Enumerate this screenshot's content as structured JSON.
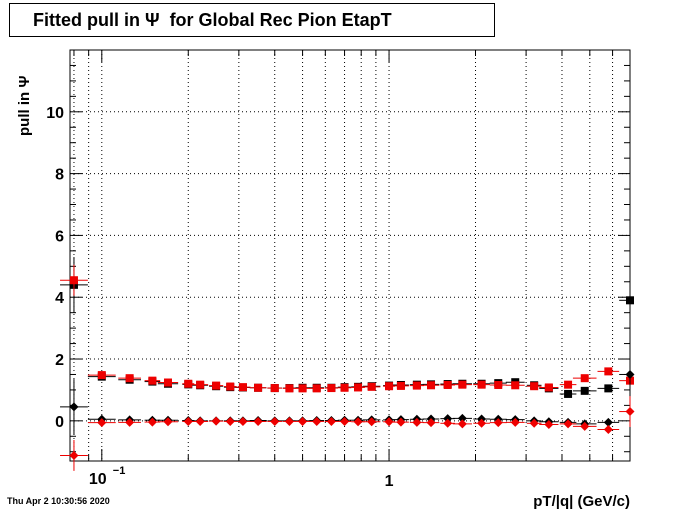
{
  "title": {
    "prefix": "Fitted pull in ",
    "symbol": "Ψ",
    "suffix": "  for Global Rec Pion EtapT"
  },
  "timestamp": "Thu Apr  2 10:30:56 2020",
  "chart_data": {
    "type": "scatter",
    "xlabel": "pT/|q| (GeV/c)",
    "ylabel_prefix": "pull in ",
    "ylabel_symbol": "Ψ",
    "xscale": "log",
    "xlim": [
      0.0775,
      6.9
    ],
    "ylim": [
      -1.3,
      12.0
    ],
    "yticks": [
      0,
      2,
      4,
      6,
      8,
      10
    ],
    "xtick_labels": [
      {
        "value": 0.1,
        "label": "10^-1"
      },
      {
        "value": 1,
        "label": "1"
      }
    ],
    "grid": true,
    "series": [
      {
        "color": "#000000",
        "marker": "square",
        "points": [
          [
            0.08,
            4.4
          ],
          [
            0.1,
            1.43
          ],
          [
            0.125,
            1.33
          ],
          [
            0.15,
            1.27
          ],
          [
            0.17,
            1.2
          ],
          [
            0.2,
            1.18
          ],
          [
            0.22,
            1.15
          ],
          [
            0.25,
            1.12
          ],
          [
            0.28,
            1.09
          ],
          [
            0.31,
            1.08
          ],
          [
            0.35,
            1.07
          ],
          [
            0.4,
            1.06
          ],
          [
            0.45,
            1.06
          ],
          [
            0.5,
            1.07
          ],
          [
            0.56,
            1.07
          ],
          [
            0.63,
            1.07
          ],
          [
            0.7,
            1.09
          ],
          [
            0.78,
            1.1
          ],
          [
            0.87,
            1.12
          ],
          [
            1.0,
            1.14
          ],
          [
            1.1,
            1.16
          ],
          [
            1.25,
            1.17
          ],
          [
            1.4,
            1.18
          ],
          [
            1.6,
            1.19
          ],
          [
            1.8,
            1.2
          ],
          [
            2.1,
            1.2
          ],
          [
            2.4,
            1.22
          ],
          [
            2.75,
            1.25
          ],
          [
            3.2,
            1.15
          ],
          [
            3.6,
            1.05
          ],
          [
            4.2,
            0.87
          ],
          [
            4.8,
            0.97
          ],
          [
            5.8,
            1.05
          ],
          [
            6.9,
            3.9
          ]
        ]
      },
      {
        "color": "#ee0000",
        "marker": "square",
        "points": [
          [
            0.08,
            4.55
          ],
          [
            0.1,
            1.48
          ],
          [
            0.125,
            1.38
          ],
          [
            0.15,
            1.3
          ],
          [
            0.17,
            1.24
          ],
          [
            0.2,
            1.2
          ],
          [
            0.22,
            1.17
          ],
          [
            0.25,
            1.14
          ],
          [
            0.28,
            1.11
          ],
          [
            0.31,
            1.09
          ],
          [
            0.35,
            1.07
          ],
          [
            0.4,
            1.06
          ],
          [
            0.45,
            1.05
          ],
          [
            0.5,
            1.05
          ],
          [
            0.56,
            1.05
          ],
          [
            0.63,
            1.06
          ],
          [
            0.7,
            1.07
          ],
          [
            0.78,
            1.08
          ],
          [
            0.87,
            1.1
          ],
          [
            1.0,
            1.12
          ],
          [
            1.1,
            1.13
          ],
          [
            1.25,
            1.14
          ],
          [
            1.4,
            1.15
          ],
          [
            1.6,
            1.16
          ],
          [
            1.8,
            1.17
          ],
          [
            2.1,
            1.17
          ],
          [
            2.4,
            1.16
          ],
          [
            2.75,
            1.15
          ],
          [
            3.2,
            1.12
          ],
          [
            3.6,
            1.08
          ],
          [
            4.2,
            1.17
          ],
          [
            4.8,
            1.38
          ],
          [
            5.8,
            1.6
          ],
          [
            6.9,
            1.3
          ]
        ]
      },
      {
        "color": "#000000",
        "marker": "diamond",
        "points": [
          [
            0.08,
            0.45
          ],
          [
            0.1,
            0.05
          ],
          [
            0.125,
            0.03
          ],
          [
            0.15,
            0.02
          ],
          [
            0.17,
            0.02
          ],
          [
            0.2,
            0.01
          ],
          [
            0.22,
            0.0
          ],
          [
            0.25,
            0.0
          ],
          [
            0.28,
            0.0
          ],
          [
            0.31,
            0.0
          ],
          [
            0.35,
            0.01
          ],
          [
            0.4,
            0.0
          ],
          [
            0.45,
            0.0
          ],
          [
            0.5,
            0.0
          ],
          [
            0.56,
            0.01
          ],
          [
            0.63,
            0.01
          ],
          [
            0.7,
            0.02
          ],
          [
            0.78,
            0.02
          ],
          [
            0.87,
            0.03
          ],
          [
            1.0,
            0.03
          ],
          [
            1.1,
            0.04
          ],
          [
            1.25,
            0.05
          ],
          [
            1.4,
            0.06
          ],
          [
            1.6,
            0.07
          ],
          [
            1.8,
            0.08
          ],
          [
            2.1,
            0.06
          ],
          [
            2.4,
            0.05
          ],
          [
            2.75,
            0.04
          ],
          [
            3.2,
            0.0
          ],
          [
            3.6,
            -0.03
          ],
          [
            4.2,
            -0.05
          ],
          [
            4.8,
            -0.1
          ],
          [
            5.8,
            -0.05
          ],
          [
            6.9,
            1.5
          ]
        ]
      },
      {
        "color": "#ee0000",
        "marker": "diamond",
        "points": [
          [
            0.08,
            -1.12
          ],
          [
            0.1,
            -0.06
          ],
          [
            0.125,
            -0.05
          ],
          [
            0.15,
            -0.04
          ],
          [
            0.17,
            -0.03
          ],
          [
            0.2,
            -0.02
          ],
          [
            0.22,
            -0.02
          ],
          [
            0.25,
            -0.01
          ],
          [
            0.28,
            -0.02
          ],
          [
            0.31,
            -0.02
          ],
          [
            0.35,
            -0.02
          ],
          [
            0.4,
            -0.02
          ],
          [
            0.45,
            -0.02
          ],
          [
            0.5,
            -0.02
          ],
          [
            0.56,
            -0.02
          ],
          [
            0.63,
            -0.02
          ],
          [
            0.7,
            -0.02
          ],
          [
            0.78,
            -0.03
          ],
          [
            0.87,
            -0.03
          ],
          [
            1.0,
            -0.03
          ],
          [
            1.1,
            -0.04
          ],
          [
            1.25,
            -0.05
          ],
          [
            1.4,
            -0.06
          ],
          [
            1.6,
            -0.08
          ],
          [
            1.8,
            -0.1
          ],
          [
            2.1,
            -0.08
          ],
          [
            2.4,
            -0.06
          ],
          [
            2.75,
            -0.05
          ],
          [
            3.2,
            -0.08
          ],
          [
            3.6,
            -0.12
          ],
          [
            4.2,
            -0.1
          ],
          [
            4.8,
            -0.18
          ],
          [
            5.8,
            -0.28
          ],
          [
            6.9,
            0.3
          ]
        ]
      }
    ]
  }
}
